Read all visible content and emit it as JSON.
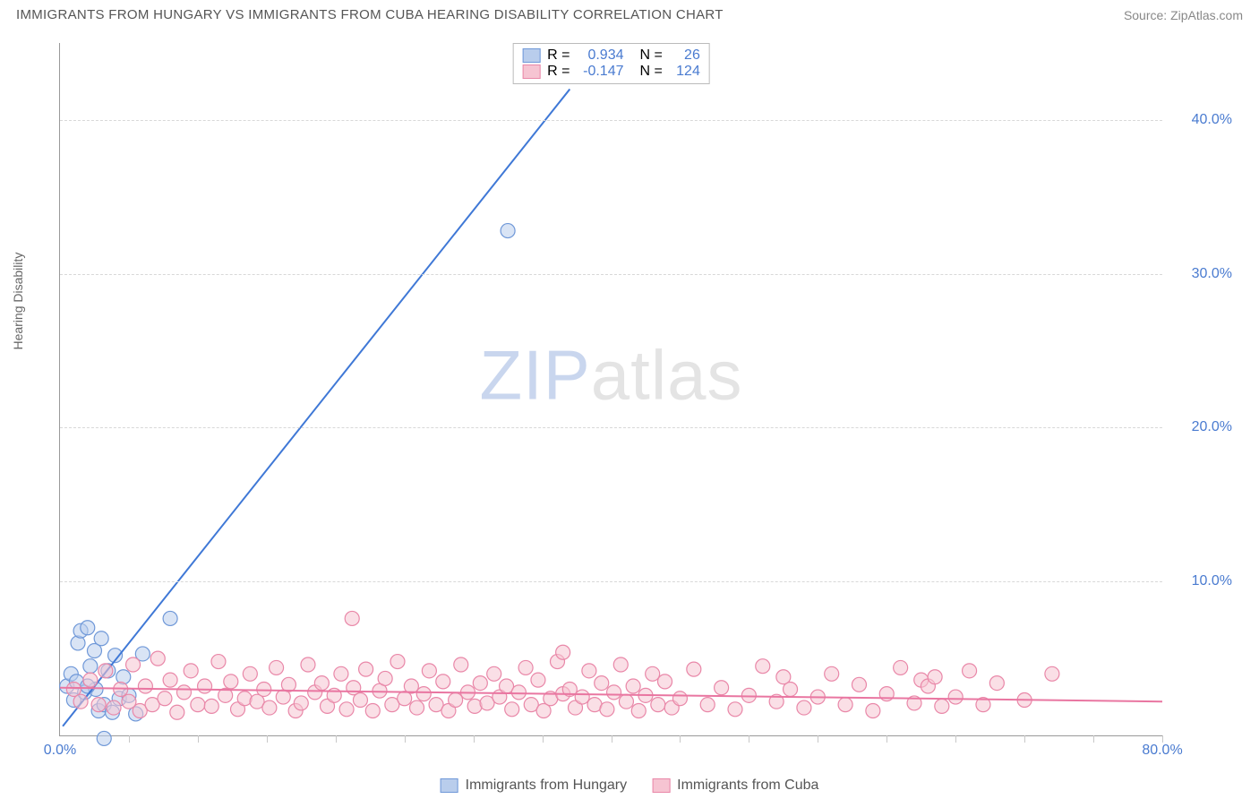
{
  "title": "IMMIGRANTS FROM HUNGARY VS IMMIGRANTS FROM CUBA HEARING DISABILITY CORRELATION CHART",
  "source": "Source: ZipAtlas.com",
  "ylabel": "Hearing Disability",
  "watermark_a": "ZIP",
  "watermark_b": "atlas",
  "chart": {
    "type": "scatter",
    "xlim": [
      0,
      80
    ],
    "ylim": [
      0,
      45
    ],
    "xticks": [
      0,
      80
    ],
    "xtick_labels": [
      "0.0%",
      "80.0%"
    ],
    "yticks": [
      10,
      20,
      30,
      40
    ],
    "ytick_labels": [
      "10.0%",
      "20.0%",
      "30.0%",
      "40.0%"
    ],
    "minor_x_count": 16,
    "background_color": "#ffffff",
    "grid_color": "#d8d8d8",
    "axis_color": "#999999",
    "tick_label_color": "#4a7bd0",
    "marker_radius": 8,
    "marker_stroke_width": 1.2,
    "trend_width": 2
  },
  "series": [
    {
      "name": "Immigrants from Hungary",
      "fill": "#b9cdec",
      "stroke": "#6f98d8",
      "trend_color": "#3f78d6",
      "R": "0.934",
      "N": "26",
      "trend": {
        "x1": 0.2,
        "y1": 0.6,
        "x2": 37,
        "y2": 42
      },
      "points": [
        [
          0.5,
          3.2
        ],
        [
          0.8,
          4.0
        ],
        [
          1.0,
          2.3
        ],
        [
          1.2,
          3.5
        ],
        [
          1.3,
          6.0
        ],
        [
          1.5,
          6.8
        ],
        [
          1.8,
          2.8
        ],
        [
          2.0,
          7.0
        ],
        [
          2.2,
          4.5
        ],
        [
          2.5,
          5.5
        ],
        [
          2.6,
          3.0
        ],
        [
          2.8,
          1.6
        ],
        [
          3.0,
          6.3
        ],
        [
          3.2,
          2.0
        ],
        [
          3.5,
          4.2
        ],
        [
          3.8,
          1.5
        ],
        [
          4.0,
          5.2
        ],
        [
          4.3,
          2.4
        ],
        [
          4.6,
          3.8
        ],
        [
          5.0,
          2.6
        ],
        [
          5.5,
          1.4
        ],
        [
          6.0,
          5.3
        ],
        [
          3.2,
          -0.2
        ],
        [
          2.0,
          3.2
        ],
        [
          8.0,
          7.6
        ],
        [
          32.5,
          32.8
        ]
      ]
    },
    {
      "name": "Immigrants from Cuba",
      "fill": "#f6c4d2",
      "stroke": "#e987a8",
      "trend_color": "#e976a1",
      "R": "-0.147",
      "N": "124",
      "trend": {
        "x1": 0,
        "y1": 3.1,
        "x2": 80,
        "y2": 2.2
      },
      "points": [
        [
          1.0,
          3.0
        ],
        [
          1.5,
          2.2
        ],
        [
          2.2,
          3.6
        ],
        [
          2.8,
          2.0
        ],
        [
          3.3,
          4.2
        ],
        [
          3.9,
          1.8
        ],
        [
          4.4,
          3.0
        ],
        [
          5.0,
          2.2
        ],
        [
          5.3,
          4.6
        ],
        [
          5.8,
          1.6
        ],
        [
          6.2,
          3.2
        ],
        [
          6.7,
          2.0
        ],
        [
          7.1,
          5.0
        ],
        [
          7.6,
          2.4
        ],
        [
          8.0,
          3.6
        ],
        [
          8.5,
          1.5
        ],
        [
          9.0,
          2.8
        ],
        [
          9.5,
          4.2
        ],
        [
          10.0,
          2.0
        ],
        [
          10.5,
          3.2
        ],
        [
          11.0,
          1.9
        ],
        [
          11.5,
          4.8
        ],
        [
          12.0,
          2.6
        ],
        [
          12.4,
          3.5
        ],
        [
          12.9,
          1.7
        ],
        [
          13.4,
          2.4
        ],
        [
          13.8,
          4.0
        ],
        [
          14.3,
          2.2
        ],
        [
          14.8,
          3.0
        ],
        [
          15.2,
          1.8
        ],
        [
          15.7,
          4.4
        ],
        [
          16.2,
          2.5
        ],
        [
          16.6,
          3.3
        ],
        [
          17.1,
          1.6
        ],
        [
          17.5,
          2.1
        ],
        [
          18.0,
          4.6
        ],
        [
          18.5,
          2.8
        ],
        [
          19.0,
          3.4
        ],
        [
          19.4,
          1.9
        ],
        [
          19.9,
          2.6
        ],
        [
          20.4,
          4.0
        ],
        [
          20.8,
          1.7
        ],
        [
          21.3,
          3.1
        ],
        [
          21.2,
          7.6
        ],
        [
          21.8,
          2.3
        ],
        [
          22.2,
          4.3
        ],
        [
          22.7,
          1.6
        ],
        [
          23.2,
          2.9
        ],
        [
          23.6,
          3.7
        ],
        [
          24.1,
          2.0
        ],
        [
          24.5,
          4.8
        ],
        [
          25.0,
          2.4
        ],
        [
          25.5,
          3.2
        ],
        [
          25.9,
          1.8
        ],
        [
          26.4,
          2.7
        ],
        [
          26.8,
          4.2
        ],
        [
          27.3,
          2.0
        ],
        [
          27.8,
          3.5
        ],
        [
          28.2,
          1.6
        ],
        [
          28.7,
          2.3
        ],
        [
          29.1,
          4.6
        ],
        [
          29.6,
          2.8
        ],
        [
          30.1,
          1.9
        ],
        [
          30.5,
          3.4
        ],
        [
          31.0,
          2.1
        ],
        [
          31.5,
          4.0
        ],
        [
          31.9,
          2.5
        ],
        [
          32.4,
          3.2
        ],
        [
          32.8,
          1.7
        ],
        [
          33.3,
          2.8
        ],
        [
          33.8,
          4.4
        ],
        [
          34.2,
          2.0
        ],
        [
          34.7,
          3.6
        ],
        [
          35.1,
          1.6
        ],
        [
          35.6,
          2.4
        ],
        [
          36.1,
          4.8
        ],
        [
          36.5,
          2.7
        ],
        [
          36.5,
          5.4
        ],
        [
          37.0,
          3.0
        ],
        [
          37.4,
          1.8
        ],
        [
          37.9,
          2.5
        ],
        [
          38.4,
          4.2
        ],
        [
          38.8,
          2.0
        ],
        [
          39.3,
          3.4
        ],
        [
          39.7,
          1.7
        ],
        [
          40.2,
          2.8
        ],
        [
          40.7,
          4.6
        ],
        [
          41.1,
          2.2
        ],
        [
          41.6,
          3.2
        ],
        [
          42.0,
          1.6
        ],
        [
          42.5,
          2.6
        ],
        [
          43.0,
          4.0
        ],
        [
          43.4,
          2.0
        ],
        [
          43.9,
          3.5
        ],
        [
          44.4,
          1.8
        ],
        [
          45.0,
          2.4
        ],
        [
          46.0,
          4.3
        ],
        [
          47.0,
          2.0
        ],
        [
          48.0,
          3.1
        ],
        [
          49.0,
          1.7
        ],
        [
          50.0,
          2.6
        ],
        [
          51.0,
          4.5
        ],
        [
          52.0,
          2.2
        ],
        [
          53.0,
          3.0
        ],
        [
          54.0,
          1.8
        ],
        [
          55.0,
          2.5
        ],
        [
          56.0,
          4.0
        ],
        [
          57.0,
          2.0
        ],
        [
          52.5,
          3.8
        ],
        [
          58.0,
          3.3
        ],
        [
          59.0,
          1.6
        ],
        [
          60.0,
          2.7
        ],
        [
          61.0,
          4.4
        ],
        [
          62.0,
          2.1
        ],
        [
          62.5,
          3.6
        ],
        [
          63.0,
          3.2
        ],
        [
          64.0,
          1.9
        ],
        [
          65.0,
          2.5
        ],
        [
          63.5,
          3.8
        ],
        [
          66.0,
          4.2
        ],
        [
          67.0,
          2.0
        ],
        [
          68.0,
          3.4
        ],
        [
          70.0,
          2.3
        ],
        [
          72.0,
          4.0
        ]
      ]
    }
  ],
  "legend_top": {
    "r_label": "R =",
    "n_label": "N ="
  },
  "legend_bottom": [
    "Immigrants from Hungary",
    "Immigrants from Cuba"
  ]
}
